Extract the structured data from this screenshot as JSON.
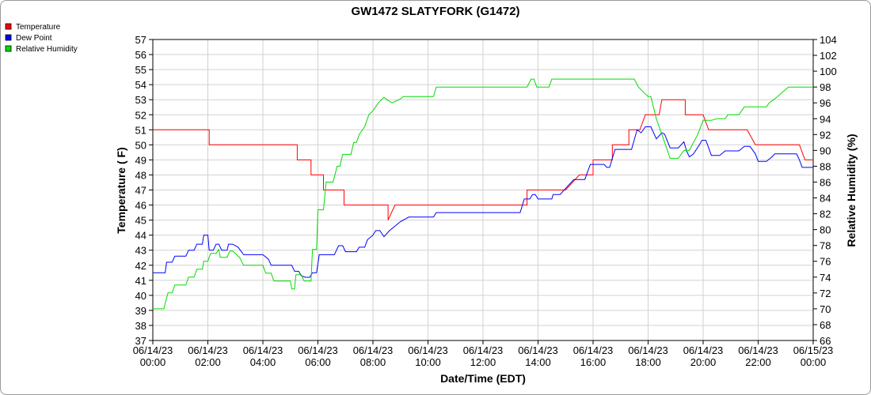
{
  "chart_data": {
    "type": "line",
    "title": "GW1472 SLATYFORK (G1472)",
    "xlabel": "Date/Time (EDT)",
    "ylabel_left": "Temperature ( F)",
    "ylabel_right": "Relative Humidity (%)",
    "x_range_hours": [
      0,
      24
    ],
    "ylim_left": [
      37,
      57
    ],
    "ylim_right": [
      66,
      104
    ],
    "grid": true,
    "legend_position": "top-left",
    "x_ticks": [
      {
        "h": 0,
        "date": "06/14/23",
        "time": "00:00"
      },
      {
        "h": 2,
        "date": "06/14/23",
        "time": "02:00"
      },
      {
        "h": 4,
        "date": "06/14/23",
        "time": "04:00"
      },
      {
        "h": 6,
        "date": "06/14/23",
        "time": "06:00"
      },
      {
        "h": 8,
        "date": "06/14/23",
        "time": "08:00"
      },
      {
        "h": 10,
        "date": "06/14/23",
        "time": "10:00"
      },
      {
        "h": 12,
        "date": "06/14/23",
        "time": "12:00"
      },
      {
        "h": 14,
        "date": "06/14/23",
        "time": "14:00"
      },
      {
        "h": 16,
        "date": "06/14/23",
        "time": "16:00"
      },
      {
        "h": 18,
        "date": "06/14/23",
        "time": "18:00"
      },
      {
        "h": 20,
        "date": "06/14/23",
        "time": "20:00"
      },
      {
        "h": 22,
        "date": "06/14/23",
        "time": "22:00"
      },
      {
        "h": 24,
        "date": "06/15/23",
        "time": "00:00"
      }
    ],
    "left_ticks": [
      37,
      38,
      39,
      40,
      41,
      42,
      43,
      44,
      45,
      46,
      47,
      48,
      49,
      50,
      51,
      52,
      53,
      54,
      55,
      56,
      57
    ],
    "right_ticks": [
      66,
      68,
      70,
      72,
      74,
      76,
      78,
      80,
      82,
      84,
      86,
      88,
      90,
      92,
      94,
      96,
      98,
      100,
      102,
      104
    ],
    "series": [
      {
        "name": "Temperature",
        "color": "#ff0000",
        "axis": "left",
        "step": true,
        "points": [
          [
            0,
            51
          ],
          [
            2.05,
            51
          ],
          [
            2.05,
            50
          ],
          [
            5.25,
            50
          ],
          [
            5.25,
            49
          ],
          [
            5.75,
            49
          ],
          [
            5.75,
            48
          ],
          [
            6.2,
            48
          ],
          [
            6.2,
            47
          ],
          [
            6.95,
            47
          ],
          [
            6.95,
            46
          ],
          [
            8.55,
            46
          ],
          [
            8.55,
            45
          ],
          [
            8.8,
            46
          ],
          [
            10,
            46
          ],
          [
            13.6,
            46
          ],
          [
            13.6,
            47
          ],
          [
            15,
            47
          ],
          [
            15.5,
            48
          ],
          [
            16,
            48
          ],
          [
            16,
            49
          ],
          [
            16.7,
            49
          ],
          [
            16.7,
            50
          ],
          [
            17.3,
            50
          ],
          [
            17.3,
            51
          ],
          [
            17.7,
            51
          ],
          [
            17.9,
            52
          ],
          [
            18.4,
            52
          ],
          [
            18.5,
            53
          ],
          [
            19.35,
            53
          ],
          [
            19.35,
            52
          ],
          [
            20,
            52
          ],
          [
            20.2,
            51
          ],
          [
            21.6,
            51
          ],
          [
            21.9,
            50
          ],
          [
            23.5,
            50
          ],
          [
            23.7,
            49
          ],
          [
            24,
            49
          ]
        ]
      },
      {
        "name": "Dew Point",
        "color": "#0000ff",
        "axis": "left",
        "step": false,
        "points": [
          [
            0,
            41.5
          ],
          [
            0.45,
            41.5
          ],
          [
            0.5,
            42.2
          ],
          [
            0.7,
            42.2
          ],
          [
            0.8,
            42.6
          ],
          [
            1.2,
            42.6
          ],
          [
            1.3,
            43
          ],
          [
            1.5,
            43
          ],
          [
            1.6,
            43.4
          ],
          [
            1.8,
            43.4
          ],
          [
            1.85,
            44
          ],
          [
            2,
            44
          ],
          [
            2.05,
            43
          ],
          [
            2.2,
            43
          ],
          [
            2.3,
            43.4
          ],
          [
            2.4,
            43.4
          ],
          [
            2.5,
            43
          ],
          [
            2.7,
            43
          ],
          [
            2.75,
            43.4
          ],
          [
            2.9,
            43.4
          ],
          [
            3.1,
            43.2
          ],
          [
            3.3,
            42.7
          ],
          [
            4.0,
            42.7
          ],
          [
            4.2,
            42.4
          ],
          [
            4.3,
            42
          ],
          [
            5.05,
            42
          ],
          [
            5.15,
            41.6
          ],
          [
            5.3,
            41.6
          ],
          [
            5.4,
            41.3
          ],
          [
            5.55,
            41.2
          ],
          [
            5.7,
            41.2
          ],
          [
            5.8,
            41.5
          ],
          [
            5.95,
            41.5
          ],
          [
            6.05,
            42.7
          ],
          [
            6.6,
            42.7
          ],
          [
            6.75,
            43.3
          ],
          [
            6.9,
            43.3
          ],
          [
            7.0,
            42.9
          ],
          [
            7.4,
            42.9
          ],
          [
            7.5,
            43.2
          ],
          [
            7.7,
            43.2
          ],
          [
            7.8,
            43.7
          ],
          [
            8.0,
            44
          ],
          [
            8.1,
            44.3
          ],
          [
            8.25,
            44.3
          ],
          [
            8.4,
            43.9
          ],
          [
            8.6,
            44.3
          ],
          [
            9.0,
            44.9
          ],
          [
            9.3,
            45.2
          ],
          [
            10.2,
            45.2
          ],
          [
            10.3,
            45.5
          ],
          [
            13.35,
            45.5
          ],
          [
            13.5,
            46.4
          ],
          [
            13.7,
            46.4
          ],
          [
            13.8,
            46.7
          ],
          [
            13.9,
            46.7
          ],
          [
            14.0,
            46.4
          ],
          [
            14.5,
            46.4
          ],
          [
            14.55,
            46.7
          ],
          [
            14.8,
            46.7
          ],
          [
            15.1,
            47.3
          ],
          [
            15.3,
            47.7
          ],
          [
            15.7,
            47.7
          ],
          [
            15.9,
            48.7
          ],
          [
            16.4,
            48.7
          ],
          [
            16.5,
            48.5
          ],
          [
            16.6,
            48.5
          ],
          [
            16.8,
            49.7
          ],
          [
            17.4,
            49.7
          ],
          [
            17.6,
            51
          ],
          [
            17.75,
            50.8
          ],
          [
            17.9,
            51.2
          ],
          [
            18.1,
            51.2
          ],
          [
            18.3,
            50.4
          ],
          [
            18.5,
            50.8
          ],
          [
            18.6,
            50.7
          ],
          [
            18.8,
            49.8
          ],
          [
            19.1,
            49.8
          ],
          [
            19.2,
            50
          ],
          [
            19.3,
            50.2
          ],
          [
            19.4,
            49.6
          ],
          [
            19.5,
            49.2
          ],
          [
            19.65,
            49.4
          ],
          [
            19.9,
            50.1
          ],
          [
            19.95,
            50.3
          ],
          [
            20.1,
            50.3
          ],
          [
            20.2,
            49.8
          ],
          [
            20.3,
            49.3
          ],
          [
            20.6,
            49.3
          ],
          [
            20.8,
            49.6
          ],
          [
            21.3,
            49.6
          ],
          [
            21.5,
            49.9
          ],
          [
            21.7,
            49.9
          ],
          [
            21.9,
            49.4
          ],
          [
            22.0,
            48.9
          ],
          [
            22.3,
            48.9
          ],
          [
            22.5,
            49.2
          ],
          [
            22.6,
            49.4
          ],
          [
            23.4,
            49.4
          ],
          [
            23.5,
            49.0
          ],
          [
            23.6,
            48.5
          ],
          [
            24,
            48.5
          ]
        ]
      },
      {
        "name": "Relative Humidity",
        "color": "#00dd00",
        "axis": "right",
        "step": false,
        "points": [
          [
            0,
            70
          ],
          [
            0.4,
            70
          ],
          [
            0.55,
            72
          ],
          [
            0.7,
            72
          ],
          [
            0.8,
            73
          ],
          [
            1.2,
            73
          ],
          [
            1.3,
            74
          ],
          [
            1.5,
            74
          ],
          [
            1.6,
            75
          ],
          [
            1.8,
            75
          ],
          [
            1.85,
            76
          ],
          [
            2.0,
            76
          ],
          [
            2.1,
            77
          ],
          [
            2.3,
            77
          ],
          [
            2.4,
            77.5
          ],
          [
            2.45,
            76.5
          ],
          [
            2.7,
            76.5
          ],
          [
            2.8,
            77.3
          ],
          [
            2.9,
            77.3
          ],
          [
            3.15,
            76.5
          ],
          [
            3.3,
            75.5
          ],
          [
            4.0,
            75.5
          ],
          [
            4.1,
            74.5
          ],
          [
            4.3,
            74.5
          ],
          [
            4.4,
            73.5
          ],
          [
            5.0,
            73.5
          ],
          [
            5.05,
            72.5
          ],
          [
            5.15,
            72.5
          ],
          [
            5.2,
            74.3
          ],
          [
            5.4,
            74.3
          ],
          [
            5.5,
            73.5
          ],
          [
            5.75,
            73.5
          ],
          [
            5.8,
            77.5
          ],
          [
            5.95,
            77.5
          ],
          [
            6.0,
            82.5
          ],
          [
            6.2,
            82.5
          ],
          [
            6.3,
            86
          ],
          [
            6.55,
            86
          ],
          [
            6.7,
            88
          ],
          [
            6.8,
            88
          ],
          [
            6.9,
            89.5
          ],
          [
            7.2,
            89.5
          ],
          [
            7.3,
            91
          ],
          [
            7.4,
            91
          ],
          [
            7.5,
            92
          ],
          [
            7.7,
            93
          ],
          [
            7.85,
            94.5
          ],
          [
            8.0,
            95
          ],
          [
            8.2,
            96
          ],
          [
            8.4,
            96.7
          ],
          [
            8.55,
            96.3
          ],
          [
            8.7,
            96
          ],
          [
            9.0,
            96.5
          ],
          [
            9.1,
            96.8
          ],
          [
            10.2,
            96.8
          ],
          [
            10.3,
            98
          ],
          [
            13.6,
            98
          ],
          [
            13.75,
            99
          ],
          [
            13.85,
            99
          ],
          [
            13.95,
            98
          ],
          [
            14.4,
            98
          ],
          [
            14.5,
            99
          ],
          [
            17.5,
            99
          ],
          [
            17.65,
            98
          ],
          [
            17.85,
            97.3
          ],
          [
            18.0,
            96.8
          ],
          [
            18.1,
            96.8
          ],
          [
            18.3,
            94
          ],
          [
            18.5,
            92
          ],
          [
            18.6,
            91
          ],
          [
            18.8,
            89
          ],
          [
            19.1,
            89
          ],
          [
            19.3,
            90
          ],
          [
            19.5,
            90
          ],
          [
            19.8,
            92
          ],
          [
            20.0,
            93.8
          ],
          [
            20.3,
            93.8
          ],
          [
            20.5,
            94
          ],
          [
            20.8,
            94
          ],
          [
            20.9,
            94.5
          ],
          [
            21.3,
            94.5
          ],
          [
            21.4,
            95
          ],
          [
            21.5,
            95.5
          ],
          [
            22.3,
            95.5
          ],
          [
            22.4,
            96
          ],
          [
            22.6,
            96.5
          ],
          [
            23.1,
            98
          ],
          [
            24,
            98
          ]
        ]
      }
    ]
  }
}
